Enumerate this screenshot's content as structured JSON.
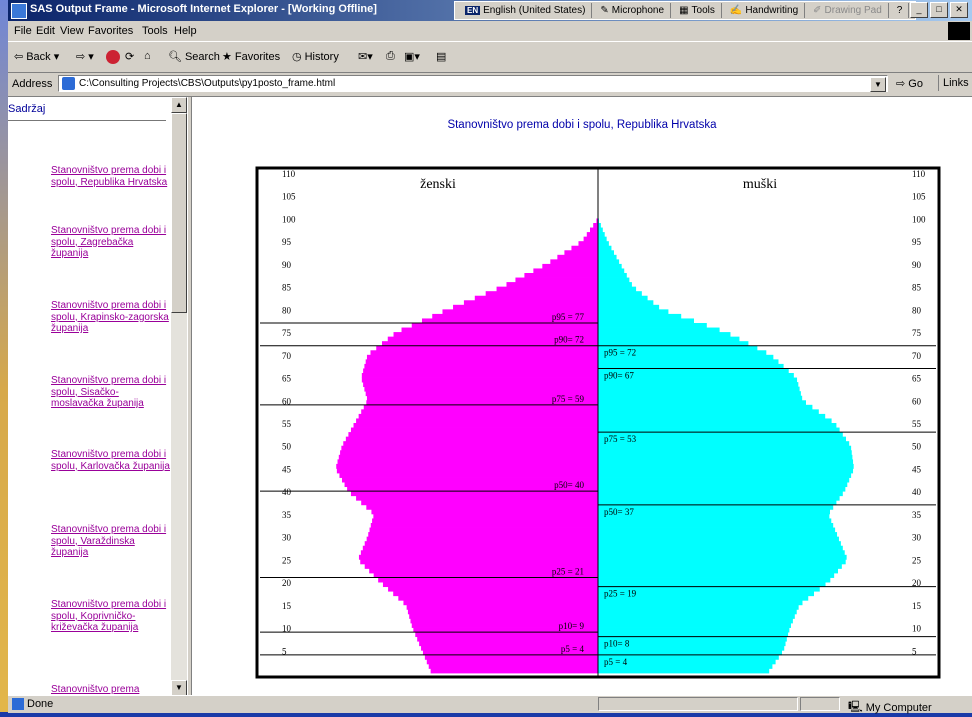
{
  "window": {
    "title": "SAS Output Frame - Microsoft Internet Explorer - [Working Offline]"
  },
  "language_bar": {
    "language": "English (United States)",
    "language_code": "EN",
    "items": [
      "Microphone",
      "Tools",
      "Handwriting",
      "Drawing Pad"
    ],
    "help": "?"
  },
  "menu": [
    "File",
    "Edit",
    "View",
    "Favorites",
    "Tools",
    "Help"
  ],
  "toolbar": {
    "back": "Back",
    "search": "Search",
    "favorites": "Favorites",
    "history": "History"
  },
  "address": {
    "label": "Address",
    "value": "C:\\Consulting Projects\\CBS\\Outputs\\py1posto_frame.html",
    "go": "Go",
    "links": "Links"
  },
  "contents": {
    "heading": "Sadržaj",
    "links": [
      "Stanovništvo prema dobi i spolu, Republika Hrvatska",
      "Stanovništvo prema dobi i spolu, Zagrebačka županija",
      "Stanovništvo prema dobi i spolu, Krapinsko-zagorska županija",
      "Stanovništvo prema dobi i spolu, Sisačko-moslavačka županija",
      "Stanovništvo prema dobi i spolu, Karlovačka županija",
      "Stanovništvo prema dobi i spolu, Varaždinska županija",
      "Stanovništvo prema dobi i spolu, Koprivničko-križevačka županija",
      "Stanovništvo prema"
    ]
  },
  "status": {
    "text": "Done",
    "zone": "My Computer"
  },
  "colors": {
    "female": "#ff00ff",
    "male": "#00ffff",
    "title_blue": "#0000aa",
    "link_purple": "#990099"
  },
  "chart_data": {
    "type": "bar",
    "subtype": "population-pyramid",
    "title": "Stanovništvo prema dobi i spolu, Republika Hrvatska",
    "y_axis": {
      "range": [
        0,
        110
      ],
      "ticks": [
        5,
        10,
        15,
        20,
        25,
        30,
        35,
        40,
        45,
        50,
        55,
        60,
        65,
        70,
        75,
        80,
        85,
        90,
        95,
        100,
        105,
        110
      ],
      "tick_labels_left": [
        "5",
        "10",
        "15",
        "20",
        "25",
        "30",
        "35",
        "40",
        "45",
        "50",
        "55",
        "60",
        "65",
        "70",
        "75",
        "80",
        "85",
        "90",
        "95",
        "100",
        "105",
        "110"
      ],
      "tick_labels_right": [
        "5",
        "10",
        "15",
        "20",
        "25",
        "30",
        "35",
        "40",
        "45",
        "50",
        "55",
        "60",
        "65",
        "70",
        "75",
        "80",
        "85",
        "90",
        "95",
        "100",
        "105",
        "110"
      ]
    },
    "grid": false,
    "series": [
      {
        "name": "ženski",
        "side": "left",
        "color": "#ff00ff",
        "points": [
          [
            0,
            0.52
          ],
          [
            5,
            0.55
          ],
          [
            10,
            0.58
          ],
          [
            15,
            0.6
          ],
          [
            20,
            0.68
          ],
          [
            25,
            0.75
          ],
          [
            30,
            0.72
          ],
          [
            35,
            0.7
          ],
          [
            40,
            0.78
          ],
          [
            45,
            0.82
          ],
          [
            50,
            0.8
          ],
          [
            55,
            0.76
          ],
          [
            60,
            0.72
          ],
          [
            65,
            0.74
          ],
          [
            70,
            0.72
          ],
          [
            75,
            0.63
          ],
          [
            80,
            0.47
          ],
          [
            85,
            0.3
          ],
          [
            90,
            0.16
          ],
          [
            95,
            0.05
          ],
          [
            100,
            0.0
          ]
        ]
      },
      {
        "name": "muški",
        "side": "right",
        "color": "#00ffff",
        "points": [
          [
            0,
            0.53
          ],
          [
            5,
            0.58
          ],
          [
            10,
            0.6
          ],
          [
            15,
            0.63
          ],
          [
            20,
            0.72
          ],
          [
            25,
            0.78
          ],
          [
            30,
            0.75
          ],
          [
            35,
            0.72
          ],
          [
            40,
            0.77
          ],
          [
            45,
            0.8
          ],
          [
            50,
            0.79
          ],
          [
            55,
            0.74
          ],
          [
            60,
            0.64
          ],
          [
            65,
            0.62
          ],
          [
            70,
            0.54
          ],
          [
            75,
            0.4
          ],
          [
            80,
            0.2
          ],
          [
            85,
            0.11
          ],
          [
            90,
            0.07
          ],
          [
            95,
            0.03
          ],
          [
            100,
            0.0
          ]
        ]
      }
    ],
    "percentiles": {
      "female": [
        {
          "label": "p95 = 77",
          "age": 77
        },
        {
          "label": "p90= 72",
          "age": 72
        },
        {
          "label": "p75 = 59",
          "age": 59
        },
        {
          "label": "p50= 40",
          "age": 40
        },
        {
          "label": "p25 = 21",
          "age": 21
        },
        {
          "label": "p10= 9",
          "age": 9
        },
        {
          "label": "p5  = 4",
          "age": 4
        }
      ],
      "male": [
        {
          "label": "p95 = 72",
          "age": 72
        },
        {
          "label": "p90= 67",
          "age": 67
        },
        {
          "label": "p75 = 53",
          "age": 53
        },
        {
          "label": "p50= 37",
          "age": 37
        },
        {
          "label": "p25 = 19",
          "age": 19
        },
        {
          "label": "p10= 8",
          "age": 8
        },
        {
          "label": "p5  = 4",
          "age": 4
        }
      ]
    }
  }
}
